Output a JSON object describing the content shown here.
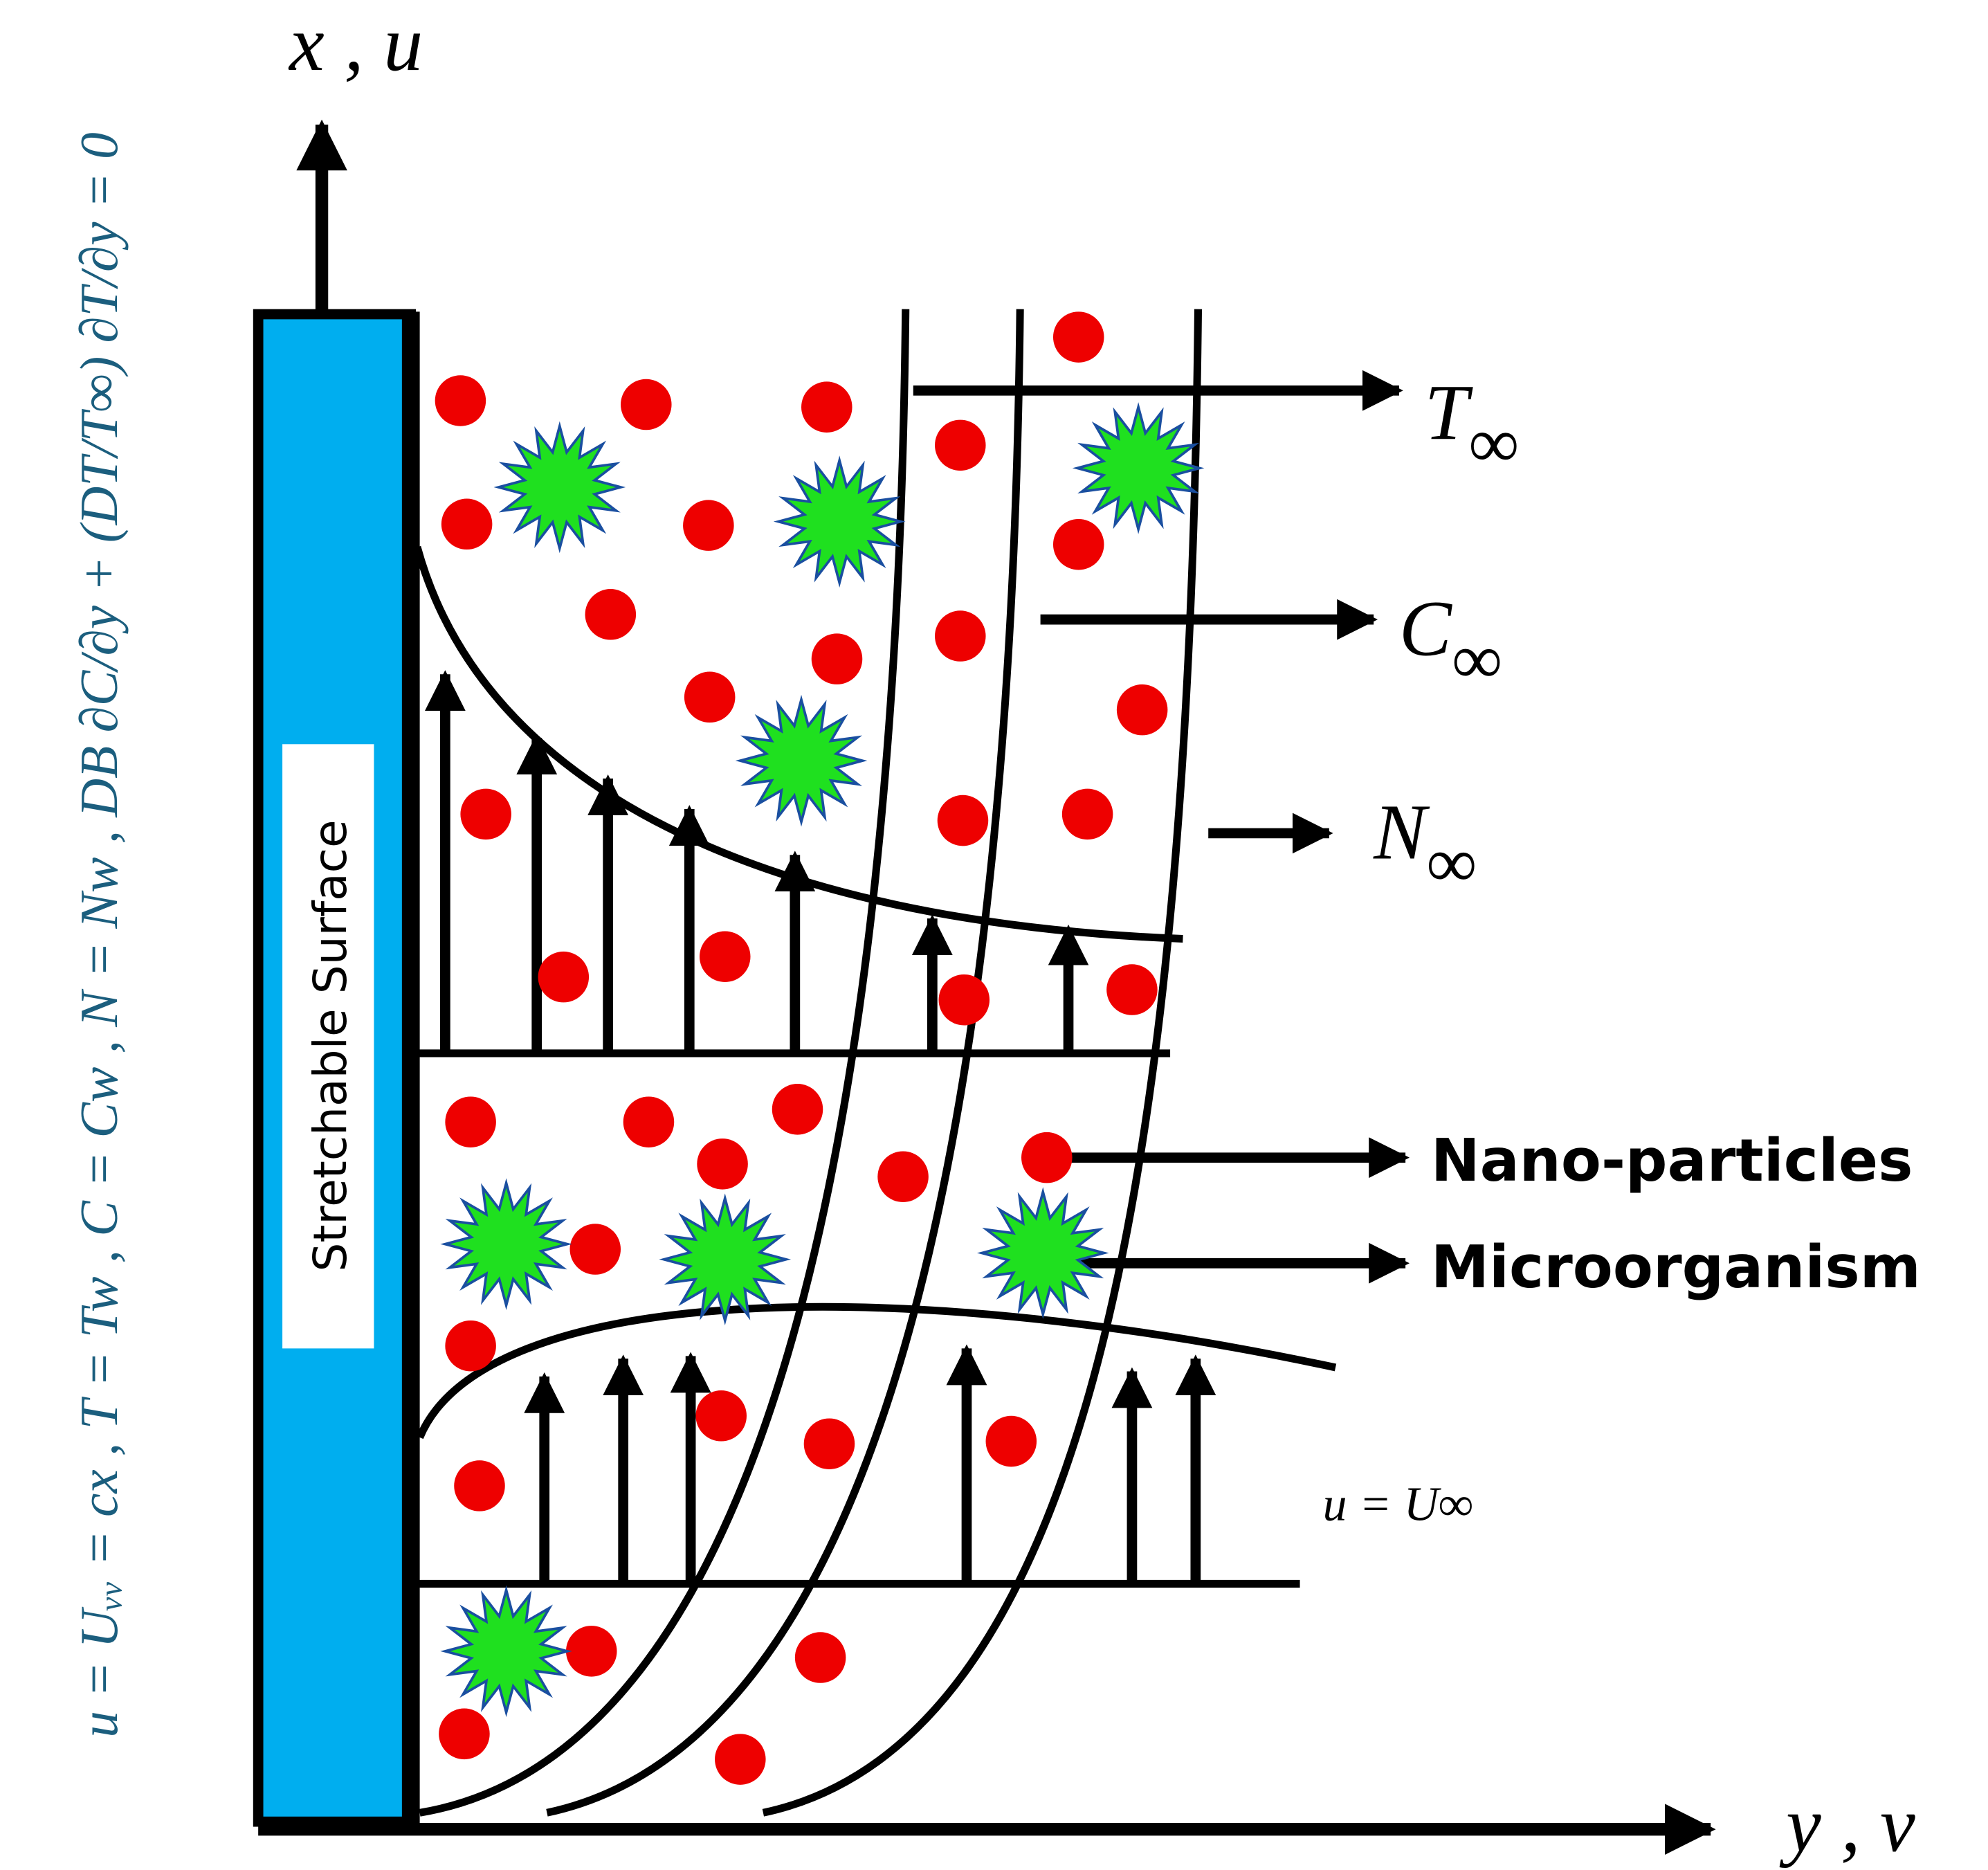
{
  "axes": {
    "vertical": "x , u",
    "horizontal": "y , v"
  },
  "surface_label": "Stretchable Surface",
  "boundary_condition": "u = Uᵥᵥ = cx , T = Tw , C = Cw , N = Nw , DB ∂C/∂y + (DT/T∞) ∂T/∂y = 0",
  "free_stream": {
    "temperature": {
      "symbol": "T",
      "sub": "∞"
    },
    "concentration": {
      "symbol": "C",
      "sub": "∞"
    },
    "microorganism": {
      "symbol": "N",
      "sub": "∞"
    },
    "velocity": "u = U∞"
  },
  "legend": {
    "nanoparticles": "Nano-particles",
    "microorganism": "Microorganism"
  }
}
